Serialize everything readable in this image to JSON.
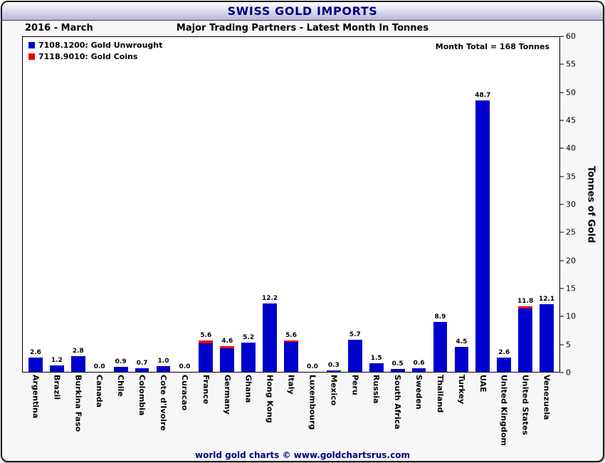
{
  "header": {
    "title": "SWISS GOLD IMPORTS",
    "period": "2016 - March",
    "subtitle": "Major Trading Partners - Latest Month In Tonnes"
  },
  "legend": [
    {
      "label": "7108.1200: Gold Unwrought",
      "color": "#0000cd"
    },
    {
      "label": "7118.9010: Gold Coins",
      "color": "#ee0000"
    }
  ],
  "annotation": "Month Total = 168 Tonnes",
  "footer": {
    "credit": "world gold charts © www.goldchartsrus.com"
  },
  "chart_data": {
    "type": "bar",
    "stacked": true,
    "title": "Swiss Gold Imports - Major Trading Partners - Latest Month In Tonnes (2016 - March)",
    "ylabel": "Tonnes of Gold",
    "ylim": [
      0,
      60
    ],
    "yticks": [
      0,
      5,
      10,
      15,
      20,
      25,
      30,
      35,
      40,
      45,
      50,
      55,
      60
    ],
    "grid": false,
    "legend_position": "top-left",
    "categories": [
      "Argentina",
      "Brazil",
      "Burkina Faso",
      "Canada",
      "Chile",
      "Colombia",
      "Cote d'Ivoire",
      "Curacao",
      "France",
      "Germany",
      "Ghana",
      "Hong Kong",
      "Italy",
      "Luxembourg",
      "Mexico",
      "Peru",
      "Russia",
      "South Africa",
      "Sweden",
      "Thailand",
      "Turkey",
      "UAE",
      "United Kingdom",
      "United States",
      "Venezuela"
    ],
    "totals": [
      2.6,
      1.2,
      2.8,
      0.0,
      0.9,
      0.7,
      1.0,
      0.0,
      5.6,
      4.6,
      5.2,
      12.2,
      5.6,
      0.0,
      0.3,
      5.7,
      1.5,
      0.5,
      0.6,
      8.9,
      4.5,
      48.7,
      2.6,
      11.8,
      12.1
    ],
    "bar_labels": [
      "2.6",
      "1.2",
      "2.8",
      "0.0",
      "0.9",
      "0.7",
      "1.0",
      "0.0",
      "5.6",
      "4.6",
      "5.2",
      "12.2",
      "5.6",
      "0.0",
      "0.3",
      "5.7",
      "1.5",
      "0.5",
      "0.6",
      "8.9",
      "4.5",
      "48.7",
      "2.6",
      "11.8",
      "12.1"
    ],
    "series": [
      {
        "name": "7108.1200: Gold Unwrought",
        "color": "#0000cd",
        "values": [
          2.6,
          1.2,
          2.8,
          0.0,
          0.9,
          0.7,
          1.0,
          0.0,
          5.1,
          4.2,
          5.2,
          12.2,
          5.3,
          0.0,
          0.3,
          5.7,
          1.5,
          0.5,
          0.6,
          8.9,
          4.5,
          48.7,
          2.6,
          11.3,
          12.1
        ]
      },
      {
        "name": "7118.9010: Gold Coins",
        "color": "#ee0000",
        "values": [
          0,
          0,
          0,
          0,
          0,
          0,
          0,
          0,
          0.5,
          0.4,
          0,
          0,
          0.3,
          0,
          0,
          0,
          0,
          0,
          0,
          0,
          0,
          0,
          0,
          0.5,
          0
        ]
      }
    ]
  }
}
